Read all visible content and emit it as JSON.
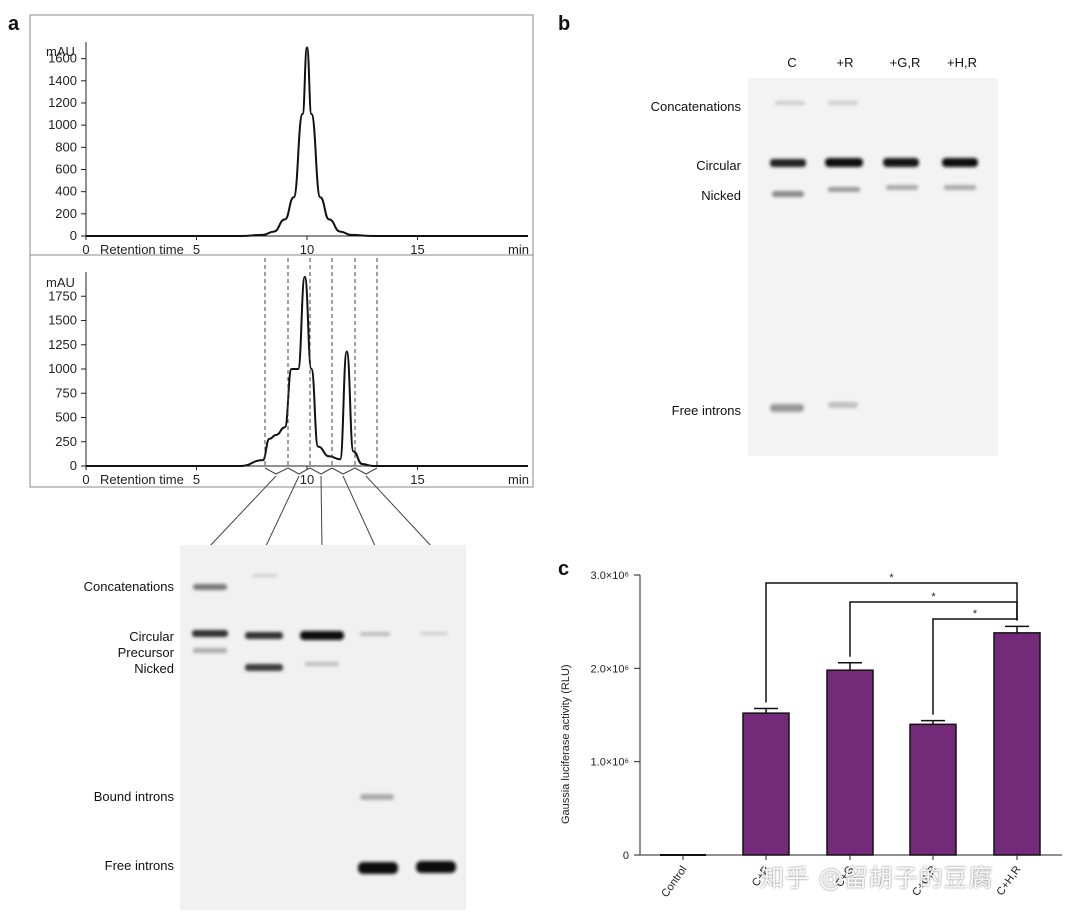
{
  "panels": {
    "a": "a",
    "b": "b",
    "c": "c"
  },
  "panel_a": {
    "chromatogram_top": {
      "y_unit": "mAU",
      "y_ticks": [
        "0",
        "200",
        "400",
        "600",
        "800",
        "1000",
        "1200",
        "1400",
        "1600"
      ],
      "x_label": "Retention time",
      "x_ticks": [
        "0",
        "5",
        "10",
        "15"
      ],
      "x_unit": "min"
    },
    "chromatogram_bottom": {
      "y_unit": "mAU",
      "y_ticks": [
        "0",
        "250",
        "500",
        "750",
        "1000",
        "1250",
        "1500",
        "1750"
      ],
      "x_label": "Retention time",
      "x_ticks": [
        "0",
        "5",
        "10",
        "15"
      ],
      "x_unit": "min"
    },
    "gel_labels": [
      "Concatenations",
      "Circular",
      "Precursor",
      "Nicked",
      "Bound introns",
      "Free introns"
    ]
  },
  "panel_b": {
    "lanes": [
      "C",
      "+R",
      "+G,R",
      "+H,R"
    ],
    "band_labels": [
      "Concatenations",
      "Circular",
      "Nicked",
      "Free introns"
    ]
  },
  "chart_data": [
    {
      "type": "line",
      "x": [
        0,
        7,
        8,
        8.5,
        9,
        9.4,
        9.8,
        10,
        10.2,
        10.6,
        11,
        11.5,
        12,
        13,
        15,
        20
      ],
      "values": [
        0,
        0,
        10,
        40,
        150,
        350,
        1100,
        1700,
        1100,
        350,
        150,
        40,
        10,
        0,
        0,
        0
      ],
      "xlim": [
        0,
        20
      ],
      "ylim": [
        0,
        1750
      ],
      "ylabel": "mAU",
      "xlabel": "Retention time"
    },
    {
      "type": "line",
      "x": [
        0,
        7,
        8,
        8.3,
        8.6,
        9,
        9.3,
        9.6,
        9.9,
        10.2,
        10.5,
        11,
        11.5,
        11.8,
        12.1,
        12.5,
        13,
        15,
        20
      ],
      "values": [
        0,
        0,
        60,
        280,
        320,
        400,
        1000,
        1000,
        1950,
        1000,
        200,
        100,
        70,
        1180,
        150,
        20,
        0,
        0,
        0
      ],
      "xlim": [
        0,
        20
      ],
      "ylim": [
        0,
        2000
      ],
      "ylabel": "mAU",
      "xlabel": "Retention time"
    },
    {
      "type": "bar",
      "categories": [
        "Control",
        "C+R",
        "C+G",
        "C+G,R",
        "C+H,R"
      ],
      "values": [
        0,
        1520000,
        1980000,
        1400000,
        2380000
      ],
      "errors": [
        0,
        50000,
        80000,
        40000,
        70000
      ],
      "ylim": [
        0,
        3000000
      ],
      "y_ticks": [
        "0",
        "1.0×10⁶",
        "2.0×10⁶",
        "3.0×10⁶"
      ],
      "ylabel": "Gaussia luciferase activity (RLU)",
      "bar_color": "#732a79",
      "significance": [
        "*",
        "*",
        "*"
      ]
    }
  ],
  "watermark": "知乎 @留胡子的豆腐"
}
